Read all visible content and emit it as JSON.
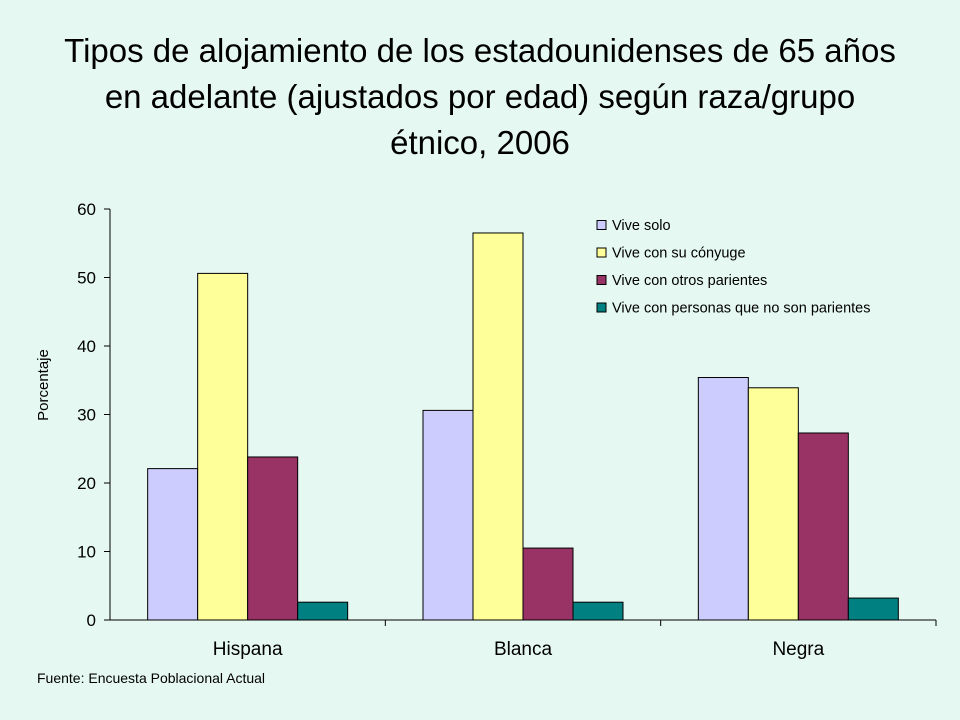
{
  "chart_data": {
    "type": "bar",
    "title": "Tipos de alojamiento de los estadounidenses de 65 años en adelante (ajustados por edad) según raza/grupo étnico, 2006",
    "xlabel": "",
    "ylabel": "Porcentaje",
    "ylim": [
      0,
      60
    ],
    "yticks": [
      0,
      10,
      20,
      30,
      40,
      50,
      60
    ],
    "categories": [
      "Hispana",
      "Blanca",
      "Negra"
    ],
    "series": [
      {
        "name": "Vive solo",
        "color": "#ccccff",
        "values": [
          22.1,
          30.6,
          35.4
        ]
      },
      {
        "name": "Vive con su cónyuge",
        "color": "#ffff99",
        "values": [
          50.6,
          56.5,
          33.9
        ]
      },
      {
        "name": "Vive con otros parientes",
        "color": "#993366",
        "values": [
          23.8,
          10.5,
          27.3
        ]
      },
      {
        "name": "Vive con personas que no son parientes",
        "color": "#008080",
        "values": [
          2.6,
          2.6,
          3.2
        ]
      }
    ],
    "legend_position": "top-right",
    "grid": false
  },
  "source": "Fuente: Encuesta Poblacional Actual"
}
